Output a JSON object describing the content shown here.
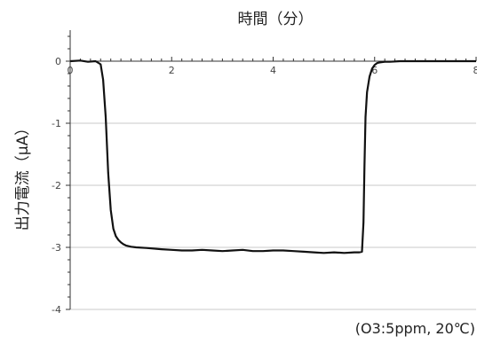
{
  "chart_data": {
    "type": "line",
    "title": "時間（分）",
    "xlabel": "時間（分）",
    "ylabel": "出力電流（μA）",
    "annotation": "(O3:5ppm, 20℃)",
    "xlim": [
      0,
      8
    ],
    "ylim": [
      -4,
      0.5
    ],
    "x_ticks": [
      0,
      2,
      4,
      6,
      8
    ],
    "x_tick_labels": [
      "0",
      "2",
      "4",
      "6",
      "8"
    ],
    "y_ticks": [
      0,
      -1,
      -2,
      -3,
      -4
    ],
    "y_tick_labels": [
      "0",
      "-1",
      "-2",
      "-3",
      "-4"
    ],
    "x_axis_position": "top-at-zero",
    "grid": "horizontal",
    "line_color": "#111111",
    "series": [
      {
        "values_x": [
          0,
          0.2,
          0.35,
          0.5,
          0.6,
          0.65,
          0.7,
          0.75,
          0.8,
          0.85,
          0.9,
          0.95,
          1.0,
          1.05,
          1.1,
          1.2,
          1.3,
          1.5,
          1.8,
          2.0,
          2.2,
          2.4,
          2.6,
          2.8,
          3.0,
          3.2,
          3.4,
          3.6,
          3.8,
          4.0,
          4.2,
          4.4,
          4.6,
          4.8,
          5.0,
          5.2,
          5.4,
          5.6,
          5.7,
          5.75,
          5.78,
          5.8,
          5.82,
          5.85,
          5.9,
          5.95,
          6.0,
          6.05,
          6.1,
          6.2,
          6.3,
          6.5,
          6.8,
          7.0,
          7.5,
          8.0
        ],
        "values_y": [
          0,
          0.01,
          -0.01,
          0.0,
          -0.05,
          -0.3,
          -0.9,
          -1.8,
          -2.4,
          -2.7,
          -2.82,
          -2.88,
          -2.92,
          -2.95,
          -2.97,
          -2.99,
          -3.0,
          -3.01,
          -3.03,
          -3.04,
          -3.05,
          -3.05,
          -3.04,
          -3.05,
          -3.06,
          -3.05,
          -3.04,
          -3.06,
          -3.06,
          -3.05,
          -3.05,
          -3.06,
          -3.07,
          -3.08,
          -3.09,
          -3.08,
          -3.09,
          -3.08,
          -3.08,
          -3.07,
          -2.6,
          -1.7,
          -0.9,
          -0.5,
          -0.25,
          -0.12,
          -0.06,
          -0.03,
          -0.02,
          -0.01,
          -0.01,
          0.0,
          0.0,
          0.0,
          0.0,
          0.0
        ]
      }
    ]
  }
}
